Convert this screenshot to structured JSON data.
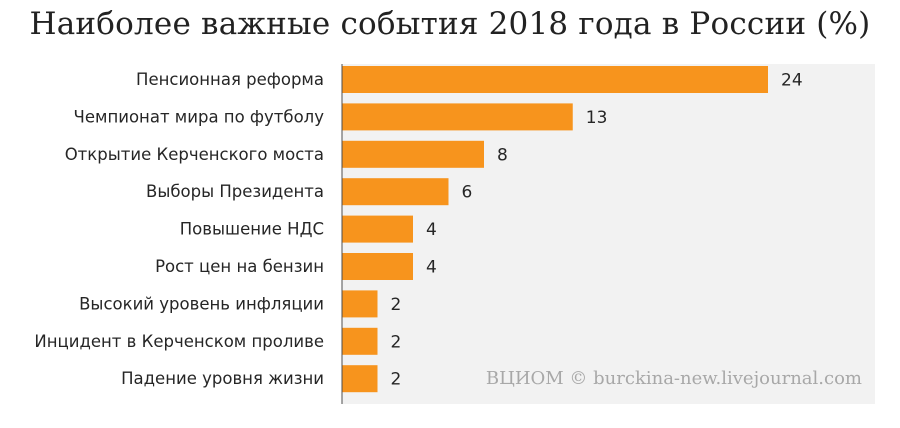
{
  "chart_data": {
    "type": "bar",
    "orientation": "horizontal",
    "title": "Наиболее важные события 2018 года в России (%)",
    "categories": [
      "Пенсионная реформа",
      "Чемпионат мира по футболу",
      "Открытие Керченского моста",
      "Выборы Президента",
      "Повышение НДС",
      "Рост цен на бензин",
      "Высокий уровень инфляции",
      "Инцидент в Керченском проливе",
      "Падение уровня жизни"
    ],
    "values": [
      24,
      13,
      8,
      6,
      4,
      4,
      2,
      2,
      2
    ],
    "xlim": [
      0,
      30
    ],
    "grid": false,
    "legend": "none",
    "colors": {
      "bar": "#F7941D",
      "plot_background": "#F2F2F2",
      "axis": "#4d4d4d"
    },
    "annotations": [
      "ВЦИОМ © burckina-new.livejournal.com"
    ]
  }
}
